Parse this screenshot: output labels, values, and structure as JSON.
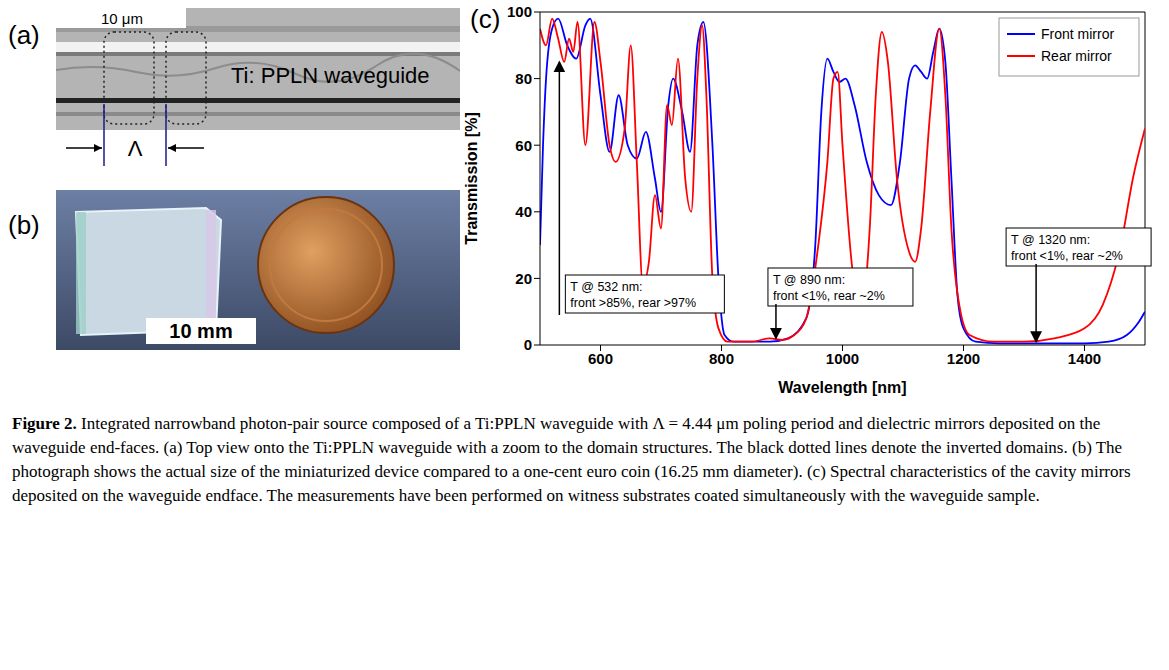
{
  "chart_data": {
    "type": "line",
    "x_label": "Wavelength [nm]",
    "y_label": "Transmission [%]",
    "xlim": [
      500,
      1500
    ],
    "xticks": [
      600,
      800,
      1000,
      1200,
      1400
    ],
    "ylim": [
      0,
      100
    ],
    "yticks": [
      0,
      20,
      40,
      60,
      80,
      100
    ],
    "grid": false,
    "legend": "top right",
    "marker": "none",
    "line_style": "solid",
    "series": [
      {
        "name": "Front mirror",
        "color": "#0000ff",
        "x": [
          500,
          505,
          510,
          520,
          530,
          545,
          560,
          575,
          583,
          600,
          615,
          630,
          645,
          660,
          675,
          690,
          700,
          712,
          720,
          735,
          748,
          760,
          770,
          785,
          795,
          805,
          820,
          850,
          880,
          910,
          940,
          955,
          965,
          975,
          985,
          995,
          1005,
          1020,
          1040,
          1060,
          1080,
          1095,
          1110,
          1120,
          1130,
          1140,
          1150,
          1160,
          1170,
          1180,
          1190,
          1200,
          1220,
          1260,
          1300,
          1350,
          1400,
          1440,
          1470,
          1490,
          1500
        ],
        "values": [
          30,
          60,
          80,
          95,
          98,
          90,
          86,
          96,
          98,
          75,
          58,
          75,
          60,
          56,
          64,
          50,
          40,
          72,
          80,
          70,
          58,
          90,
          97,
          60,
          20,
          3,
          1,
          1,
          1,
          2,
          8,
          30,
          70,
          86,
          82,
          79,
          80,
          72,
          55,
          45,
          42,
          55,
          80,
          84,
          82,
          80,
          88,
          95,
          85,
          50,
          15,
          5,
          1,
          0.5,
          0.5,
          0.5,
          0.5,
          1,
          3,
          7,
          10
        ]
      },
      {
        "name": "Rear mirror",
        "color": "#ff0000",
        "x": [
          500,
          510,
          520,
          530,
          540,
          548,
          555,
          562,
          575,
          590,
          600,
          615,
          625,
          640,
          650,
          660,
          670,
          680,
          690,
          700,
          710,
          718,
          728,
          740,
          750,
          760,
          768,
          775,
          785,
          795,
          810,
          850,
          880,
          900,
          920,
          940,
          960,
          975,
          985,
          992,
          1000,
          1015,
          1025,
          1035,
          1045,
          1055,
          1065,
          1075,
          1090,
          1110,
          1120,
          1130,
          1145,
          1160,
          1170,
          1180,
          1195,
          1210,
          1250,
          1300,
          1350,
          1400,
          1430,
          1460,
          1480,
          1500
        ],
        "values": [
          95,
          90,
          98,
          92,
          85,
          92,
          88,
          97,
          60,
          97,
          85,
          60,
          55,
          65,
          90,
          55,
          18,
          25,
          45,
          35,
          72,
          66,
          86,
          50,
          40,
          80,
          96,
          75,
          20,
          5,
          1,
          1,
          2,
          1.5,
          3,
          8,
          30,
          55,
          80,
          82,
          60,
          25,
          12,
          14,
          35,
          75,
          94,
          85,
          50,
          28,
          25,
          35,
          70,
          95,
          75,
          35,
          10,
          3,
          1,
          1,
          2,
          5,
          12,
          30,
          50,
          65
        ]
      }
    ],
    "annotations": [
      {
        "text": [
          "T @ 532 nm:",
          "front >85%, rear >97%"
        ],
        "x": 532,
        "y": 85
      },
      {
        "text": [
          "T @ 890 nm:",
          "front <1%, rear ~2%"
        ],
        "x": 890,
        "y": 2
      },
      {
        "text": [
          "T @ 1320 nm:",
          "front <1%, rear ~2%"
        ],
        "x": 1320,
        "y": 1
      }
    ]
  },
  "panels": {
    "a": {
      "label": "(a)",
      "scale_bar": "10 μm",
      "text": "Ti: PPLN waveguide",
      "period_symbol": "Λ"
    },
    "b": {
      "label": "(b)",
      "scale_bar": "10 mm"
    },
    "c": {
      "label": "(c)"
    }
  },
  "caption": {
    "label": "Figure 2.",
    "text": "Integrated narrowband photon-pair source composed of a Ti:PPLN waveguide with Λ = 4.44 μm poling period and dielectric mirrors deposited on the waveguide end-faces. (a) Top view onto the Ti:PPLN waveguide with a zoom to the domain structures. The black dotted lines denote the inverted domains. (b) The photograph shows the actual size of the miniaturized device compared to a one-cent euro coin (16.25 mm diameter). (c) Spectral characteristics of the cavity mirrors deposited on the waveguide endface. The measurements have been performed on witness substrates coated simultaneously with the waveguide sample."
  }
}
